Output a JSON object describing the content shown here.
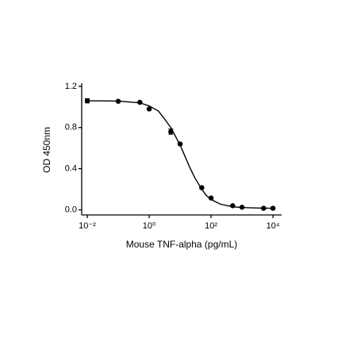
{
  "chart_data": {
    "type": "scatter",
    "xlabel": "Mouse TNF-alpha (pg/mL)",
    "ylabel": "OD 450nm",
    "xscale": "log",
    "xlim": [
      0.0066,
      19000
    ],
    "ylim": [
      -0.05,
      1.23
    ],
    "xticks": [
      {
        "value": 0.01,
        "label": "10⁻²"
      },
      {
        "value": 1,
        "label": "10⁰"
      },
      {
        "value": 100,
        "label": "10²"
      },
      {
        "value": 10000,
        "label": "10⁴"
      }
    ],
    "yticks": [
      {
        "value": 0,
        "label": "0.0"
      },
      0.4,
      0.8,
      1.2
    ],
    "color": "#000000",
    "series": [
      {
        "type": "scatter",
        "x": [
          0.01,
          0.1,
          0.5,
          1,
          5,
          10,
          50,
          100,
          500,
          1000,
          5000,
          10000
        ],
        "values": [
          1.06,
          1.055,
          1.045,
          0.98,
          0.76,
          0.64,
          0.215,
          0.115,
          0.04,
          0.025,
          0.015,
          0.015
        ],
        "errors": [
          0.02,
          0.005,
          0.005,
          0.01,
          0.025,
          0.01,
          0.01,
          0.005,
          0.005,
          0.005,
          0.005,
          0.005
        ]
      },
      {
        "type": "line",
        "x": [
          0.01,
          0.1,
          0.5,
          1,
          2,
          3,
          5,
          10,
          20,
          30,
          50,
          70,
          100,
          200,
          500,
          1000,
          5000,
          10000
        ],
        "values": [
          1.06,
          1.057,
          1.04,
          1.01,
          0.96,
          0.89,
          0.8,
          0.63,
          0.42,
          0.31,
          0.2,
          0.14,
          0.1,
          0.055,
          0.03,
          0.022,
          0.016,
          0.015
        ]
      }
    ]
  }
}
